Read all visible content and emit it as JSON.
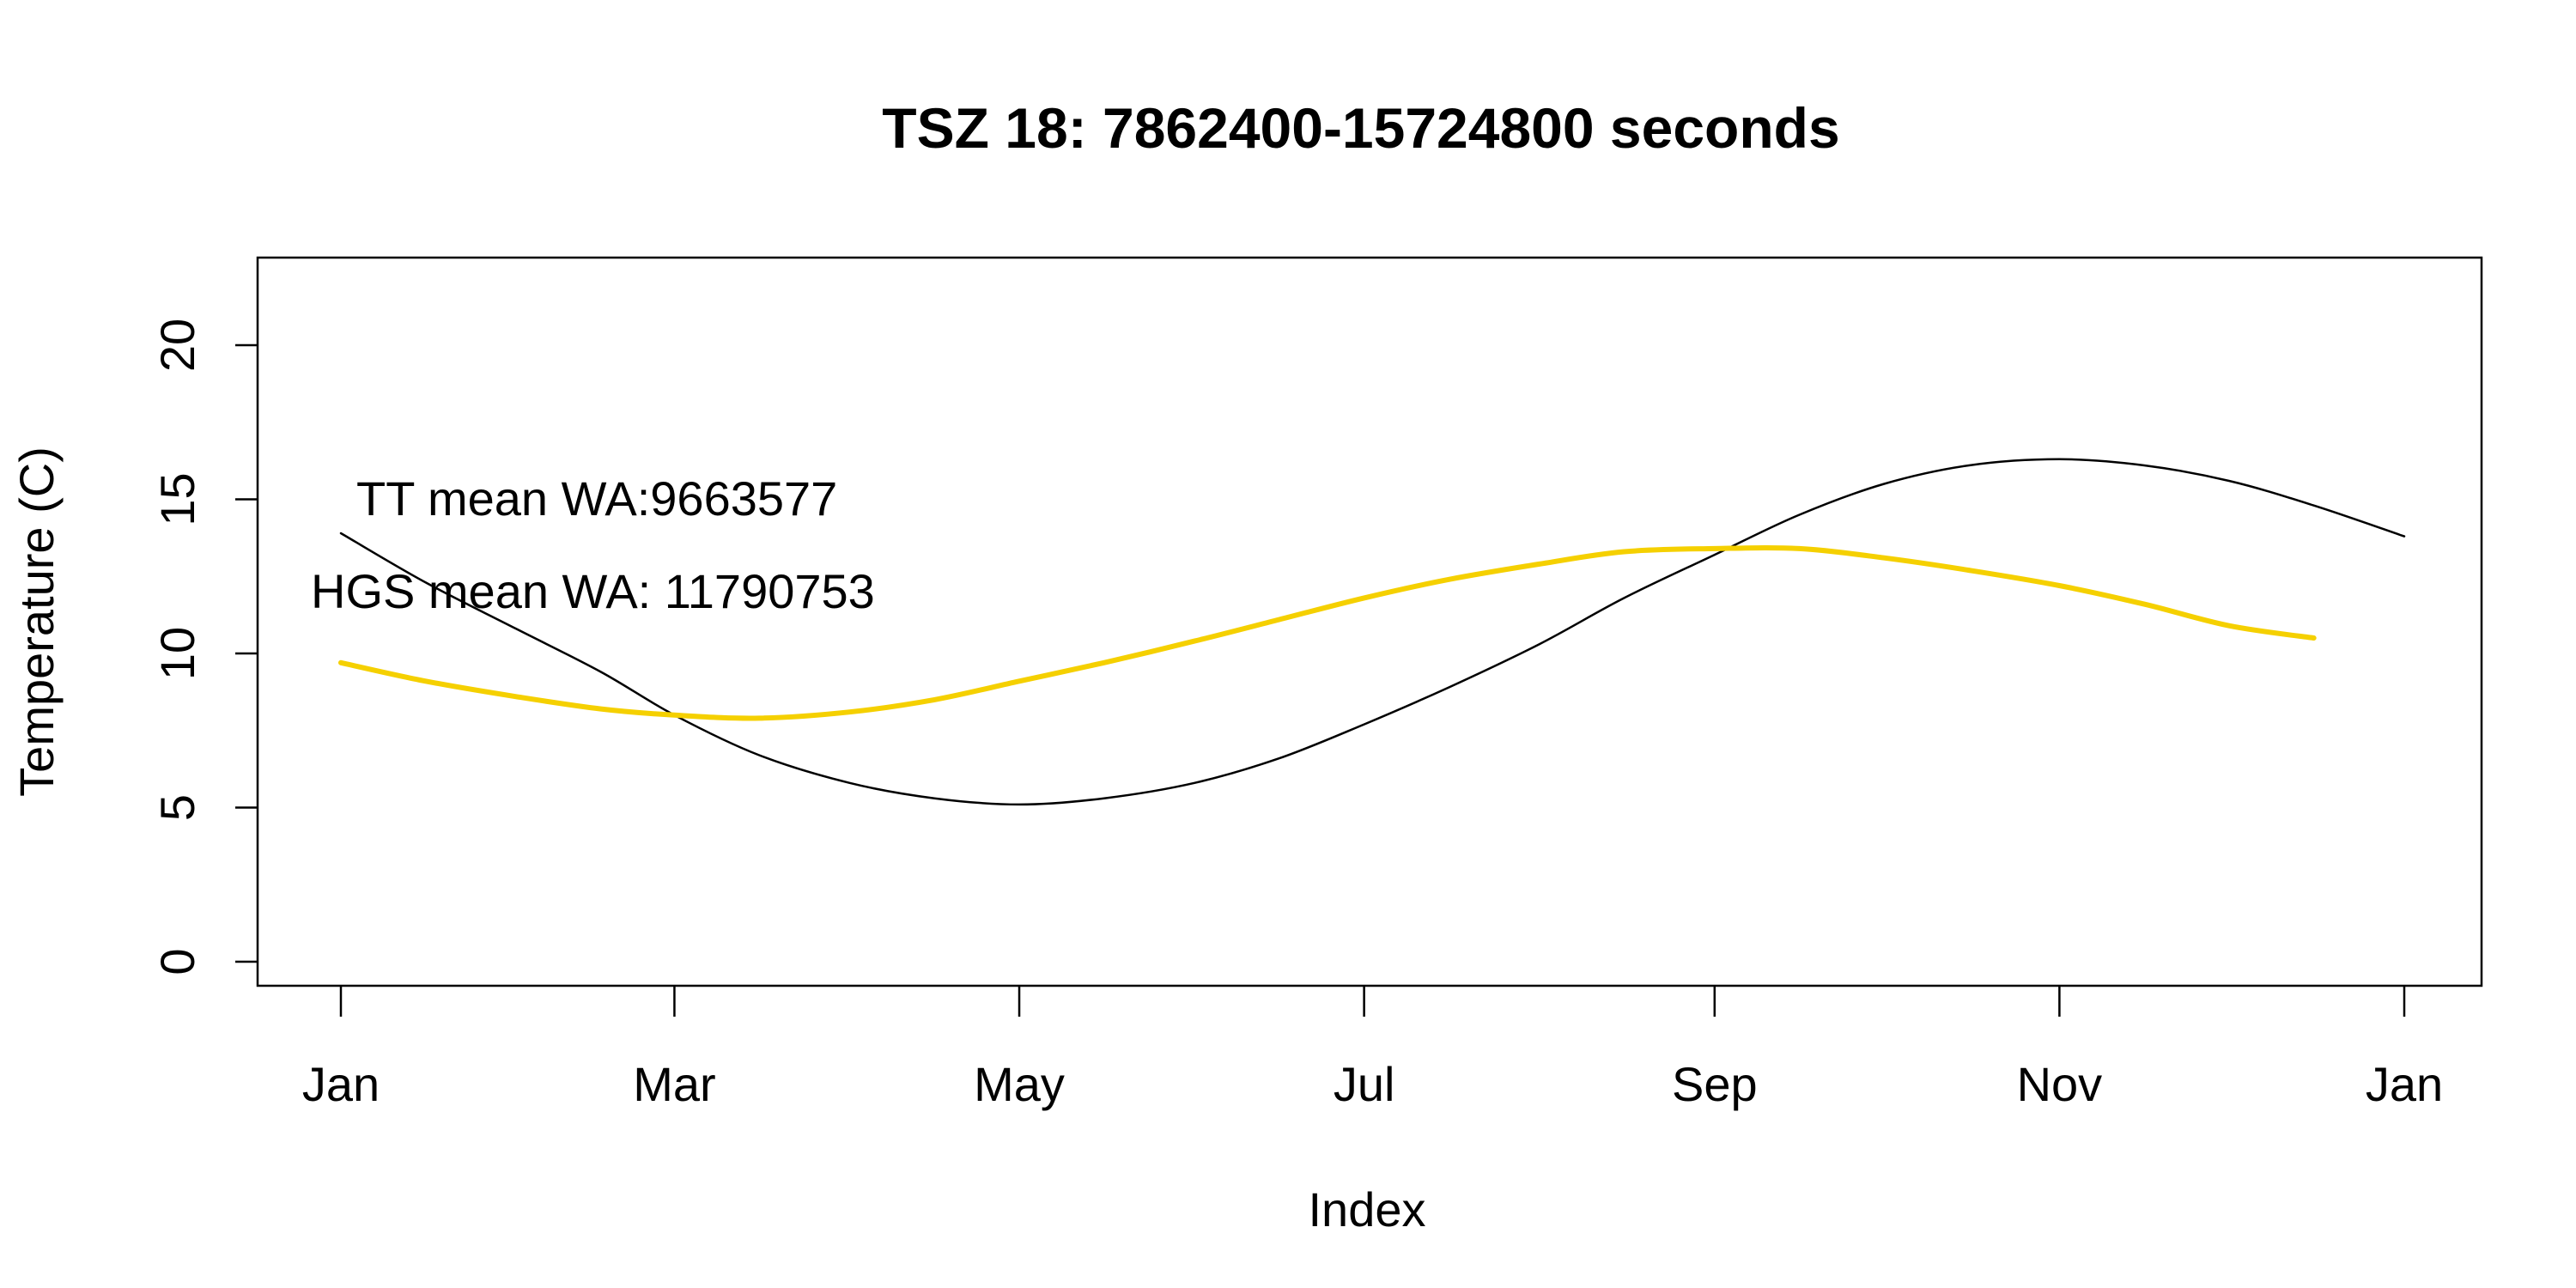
{
  "chart_data": {
    "type": "line",
    "title": "TSZ 18: 7862400-15724800 seconds",
    "xlabel": "Index",
    "ylabel": "Temperature (C)",
    "ylim": [
      0,
      22
    ],
    "yticks": [
      0,
      5,
      10,
      15,
      20
    ],
    "xlim": [
      "2023-01-01",
      "2024-01-01"
    ],
    "xticks": [
      {
        "date": "2023-01-01",
        "label": "Jan"
      },
      {
        "date": "2023-03-01",
        "label": "Mar"
      },
      {
        "date": "2023-05-01",
        "label": "May"
      },
      {
        "date": "2023-07-01",
        "label": "Jul"
      },
      {
        "date": "2023-09-01",
        "label": "Sep"
      },
      {
        "date": "2023-11-01",
        "label": "Nov"
      },
      {
        "date": "2024-01-01",
        "label": "Jan"
      }
    ],
    "grid": false,
    "legend": "none",
    "annotations": [
      {
        "text": "TT mean WA:9663577"
      },
      {
        "text": "HGS mean WA: 11790753"
      }
    ],
    "series": [
      {
        "color": "#000000",
        "x": [
          "2023-01-01",
          "2023-01-16",
          "2023-02-01",
          "2023-02-16",
          "2023-03-01",
          "2023-03-16",
          "2023-04-01",
          "2023-04-16",
          "2023-05-01",
          "2023-05-16",
          "2023-06-01",
          "2023-06-16",
          "2023-07-01",
          "2023-07-16",
          "2023-08-01",
          "2023-08-16",
          "2023-09-01",
          "2023-09-16",
          "2023-10-01",
          "2023-10-16",
          "2023-11-01",
          "2023-11-16",
          "2023-12-01",
          "2023-12-16",
          "2024-01-01"
        ],
        "values": [
          13.9,
          12.3,
          10.8,
          9.4,
          8.0,
          6.7,
          5.8,
          5.3,
          5.1,
          5.3,
          5.8,
          6.6,
          7.7,
          8.9,
          10.3,
          11.8,
          13.2,
          14.5,
          15.5,
          16.1,
          16.3,
          16.1,
          15.6,
          14.8,
          13.8
        ]
      },
      {
        "color": "#f5d000",
        "x": [
          "2023-01-01",
          "2023-01-16",
          "2023-02-01",
          "2023-02-16",
          "2023-03-01",
          "2023-03-16",
          "2023-04-01",
          "2023-04-16",
          "2023-05-01",
          "2023-05-16",
          "2023-06-01",
          "2023-06-16",
          "2023-07-01",
          "2023-07-16",
          "2023-08-01",
          "2023-08-16",
          "2023-09-01",
          "2023-09-16",
          "2023-10-01",
          "2023-10-16",
          "2023-11-01",
          "2023-11-16",
          "2023-12-01",
          "2023-12-16"
        ],
        "values": [
          9.7,
          9.1,
          8.6,
          8.2,
          8.0,
          7.9,
          8.1,
          8.5,
          9.1,
          9.7,
          10.4,
          11.1,
          11.8,
          12.4,
          12.9,
          13.3,
          13.4,
          13.4,
          13.1,
          12.7,
          12.2,
          11.6,
          10.9,
          10.5
        ]
      }
    ]
  }
}
